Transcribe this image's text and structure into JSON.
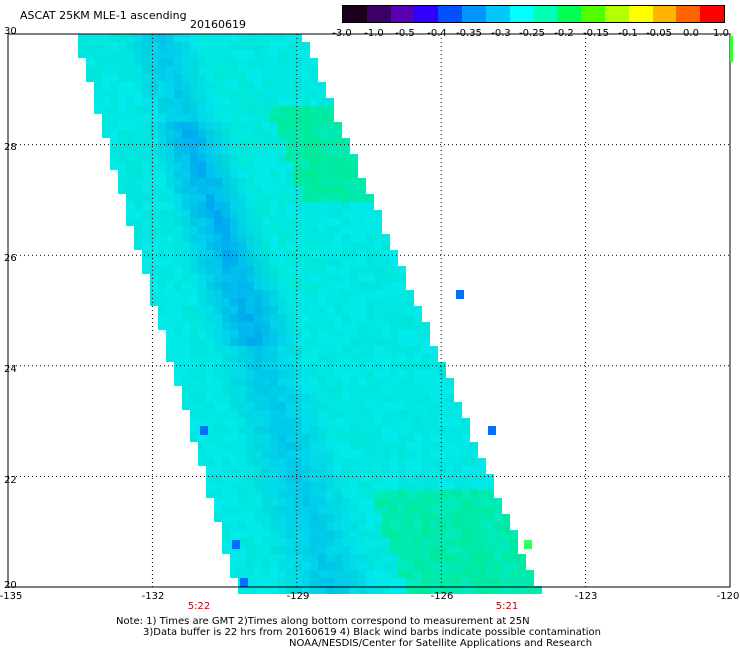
{
  "header": {
    "title": "ASCAT 25KM MLE-1 ascending",
    "date": "20160619"
  },
  "colorbar": {
    "colors": [
      "#1a001a",
      "#3a0066",
      "#5a00b4",
      "#3000ff",
      "#0050ff",
      "#0096ff",
      "#00c8ff",
      "#00ffff",
      "#00ffb4",
      "#00ff50",
      "#50ff00",
      "#b4ff00",
      "#ffff00",
      "#ffb400",
      "#ff6400",
      "#ff0000"
    ],
    "labels": [
      "-3.0",
      "-1.0",
      "-0.5",
      "-0.4",
      "-0.35",
      "-0.3",
      "-0.25",
      "-0.2",
      "-0.15",
      "-0.1",
      "-0.05",
      "0.0",
      "1.0"
    ]
  },
  "map": {
    "lon_range": [
      -135,
      -120
    ],
    "lat_range": [
      20,
      30
    ],
    "x_ticks": [
      "-135",
      "-132",
      "-129",
      "-126",
      "-123",
      "-120"
    ],
    "y_ticks": [
      "30",
      "28",
      "26",
      "24",
      "22",
      "20"
    ],
    "time_labels": [
      {
        "text": "5:22",
        "lon": -131.2
      },
      {
        "text": "5:21",
        "lon": -125.2
      }
    ]
  },
  "notes": {
    "line1": "Note: 1) Times are GMT 2)Times along bottom correspond to measurement at 25N",
    "line2": "3)Data buffer is 22 hrs from 20160619 4) Black wind barbs indicate possible contamination",
    "line3": "NOAA/NESDIS/Center for Satellite Applications and Research"
  }
}
